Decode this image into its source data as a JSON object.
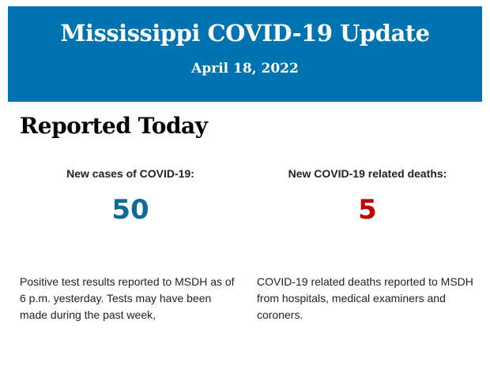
{
  "header": {
    "title": "Mississippi COVID-19 Update",
    "date": "April 18, 2022",
    "background_color": "#0073b1"
  },
  "section": {
    "title": "Reported Today"
  },
  "cases": {
    "label": "New cases of COVID-19:",
    "value": "50",
    "color": "#0e6a9a",
    "description": "Positive test results reported to MSDH as of 6 p.m. yesterday. Tests may have been made during the past week,"
  },
  "deaths": {
    "label": "New COVID-19 related deaths:",
    "value": "5",
    "color": "#c00000",
    "description": "COVID-19 related deaths reported to MSDH from hospitals, medical examiners and coroners."
  }
}
